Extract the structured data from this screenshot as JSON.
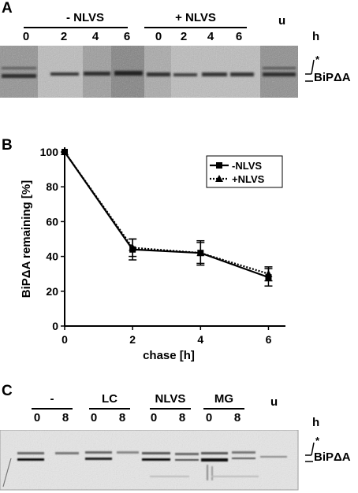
{
  "panel_a": {
    "letter": "A",
    "groups": [
      {
        "label": "- NLVS",
        "lanes": [
          "0",
          "2",
          "4",
          "6"
        ]
      },
      {
        "label": "+ NLVS",
        "lanes": [
          "0",
          "2",
          "4",
          "6"
        ]
      }
    ],
    "extra_lane": "u",
    "unit": "h",
    "band_star": "*",
    "band_label": "BiPΔA"
  },
  "panel_b": {
    "letter": "B",
    "chart_data": {
      "type": "line",
      "x": [
        0,
        2,
        4,
        6
      ],
      "xlabel": "chase [h]",
      "ylabel": "BiPΔA remaining [%]",
      "xlim": [
        0,
        6.5
      ],
      "ylim": [
        0,
        100
      ],
      "xticks": [
        0,
        2,
        4,
        6
      ],
      "yticks": [
        0,
        20,
        40,
        60,
        80,
        100
      ],
      "grid": false,
      "legend_position": "top-right",
      "series": [
        {
          "name": "-NLVS",
          "marker": "square",
          "line": "solid",
          "values": [
            100,
            44,
            42,
            28
          ],
          "errors": [
            0,
            6,
            7,
            5
          ]
        },
        {
          "name": "+NLVS",
          "marker": "triangle",
          "line": "dotted",
          "values": [
            100,
            45,
            42,
            30
          ],
          "errors": [
            0,
            5,
            6,
            4
          ]
        }
      ]
    }
  },
  "panel_c": {
    "letter": "C",
    "groups": [
      {
        "label": "-",
        "lanes": [
          "0",
          "8"
        ]
      },
      {
        "label": "LC",
        "lanes": [
          "0",
          "8"
        ]
      },
      {
        "label": "NLVS",
        "lanes": [
          "0",
          "8"
        ]
      },
      {
        "label": "MG",
        "lanes": [
          "0",
          "8"
        ]
      }
    ],
    "extra_lane": "u",
    "unit": "h",
    "band_star": "*",
    "band_label": "BiPΔA"
  }
}
